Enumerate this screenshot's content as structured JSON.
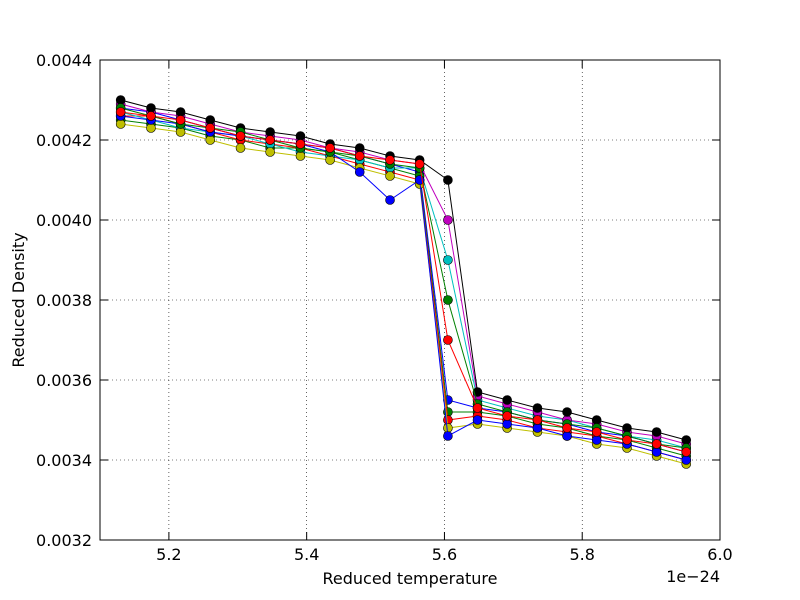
{
  "chart_data": {
    "type": "line",
    "title": "",
    "xlabel": "Reduced temperature",
    "ylabel": "Reduced Density",
    "x_offset_label": "1e−24",
    "xlim": [
      5.1,
      6.0
    ],
    "ylim": [
      0.0032,
      0.0044
    ],
    "x_ticks": [
      5.2,
      5.4,
      5.6,
      5.8,
      6.0
    ],
    "x_tick_labels": [
      "5.2",
      "5.4",
      "5.6",
      "5.8",
      "6.0"
    ],
    "y_ticks": [
      0.0032,
      0.0034,
      0.0036,
      0.0038,
      0.004,
      0.0042,
      0.0044
    ],
    "y_tick_labels": [
      "0.0032",
      "0.0034",
      "0.0036",
      "0.0038",
      "0.0040",
      "0.0042",
      "0.0044"
    ],
    "grid": true,
    "marker": "circle",
    "x": [
      5.13,
      5.174,
      5.217,
      5.26,
      5.304,
      5.347,
      5.391,
      5.434,
      5.477,
      5.521,
      5.564,
      5.605,
      5.648,
      5.691,
      5.735,
      5.778,
      5.821,
      5.865,
      5.908,
      5.951
    ],
    "colors": [
      "#0000ff",
      "#008000",
      "#ff0000",
      "#00bfbf",
      "#bf00bf",
      "#bfbf00",
      "#000000"
    ],
    "series": [
      {
        "values": [
          0.00428,
          0.00427,
          0.00425,
          0.00423,
          0.00421,
          0.0042,
          0.00419,
          0.00418,
          0.00416,
          0.00414,
          0.00412,
          0.00355,
          0.00353,
          0.00352,
          0.0035,
          0.00349,
          0.00347,
          0.00346,
          0.00344,
          0.00342
        ]
      },
      {
        "values": [
          0.00425,
          0.00424,
          0.00423,
          0.00421,
          0.0042,
          0.00418,
          0.00418,
          0.00417,
          0.00415,
          0.00413,
          0.00411,
          0.00352,
          0.00352,
          0.00351,
          0.00349,
          0.00348,
          0.00346,
          0.00345,
          0.00343,
          0.00341
        ]
      },
      {
        "values": [
          0.00426,
          0.00426,
          0.00424,
          0.00422,
          0.0042,
          0.00419,
          0.00418,
          0.00416,
          0.00414,
          0.00412,
          0.0041,
          0.0035,
          0.00351,
          0.0035,
          0.00348,
          0.00347,
          0.00346,
          0.00344,
          0.00342,
          0.0034
        ]
      },
      {
        "values": [
          0.00427,
          0.00425,
          0.00423,
          0.00422,
          0.00421,
          0.00419,
          0.00417,
          0.00416,
          0.00415,
          0.00413,
          0.00413,
          0.0039,
          0.00355,
          0.00353,
          0.00351,
          0.0035,
          0.00348,
          0.00346,
          0.00345,
          0.00343
        ]
      },
      {
        "values": [
          0.00429,
          0.00427,
          0.00426,
          0.00424,
          0.00422,
          0.00421,
          0.0042,
          0.00418,
          0.00417,
          0.00415,
          0.00414,
          0.004,
          0.00356,
          0.00354,
          0.00352,
          0.0035,
          0.00349,
          0.00347,
          0.00346,
          0.00344
        ]
      },
      {
        "values": [
          0.00424,
          0.00423,
          0.00422,
          0.0042,
          0.00418,
          0.00417,
          0.00416,
          0.00415,
          0.00413,
          0.00411,
          0.00409,
          0.00348,
          0.00349,
          0.00348,
          0.00347,
          0.00346,
          0.00344,
          0.00343,
          0.00341,
          0.00339
        ]
      },
      {
        "values": [
          0.0043,
          0.00428,
          0.00427,
          0.00425,
          0.00423,
          0.00422,
          0.00421,
          0.00419,
          0.00418,
          0.00416,
          0.00415,
          0.0041,
          0.00357,
          0.00355,
          0.00353,
          0.00352,
          0.0035,
          0.00348,
          0.00347,
          0.00345
        ]
      },
      {
        "values": [
          0.00426,
          0.00425,
          0.00424,
          0.00422,
          0.00421,
          0.0042,
          0.00419,
          0.00417,
          0.00412,
          0.00405,
          0.0041,
          0.00346,
          0.0035,
          0.00349,
          0.00348,
          0.00346,
          0.00345,
          0.00344,
          0.00342,
          0.0034
        ]
      },
      {
        "values": [
          0.00428,
          0.00426,
          0.00424,
          0.00423,
          0.00422,
          0.0042,
          0.00418,
          0.00417,
          0.00416,
          0.00414,
          0.00413,
          0.0038,
          0.00354,
          0.00352,
          0.0035,
          0.00349,
          0.00348,
          0.00346,
          0.00344,
          0.00343
        ]
      },
      {
        "values": [
          0.00427,
          0.00426,
          0.00425,
          0.00423,
          0.00421,
          0.0042,
          0.00419,
          0.00418,
          0.00416,
          0.00415,
          0.00414,
          0.0037,
          0.00353,
          0.00351,
          0.0035,
          0.00348,
          0.00347,
          0.00345,
          0.00344,
          0.00342
        ]
      }
    ]
  }
}
